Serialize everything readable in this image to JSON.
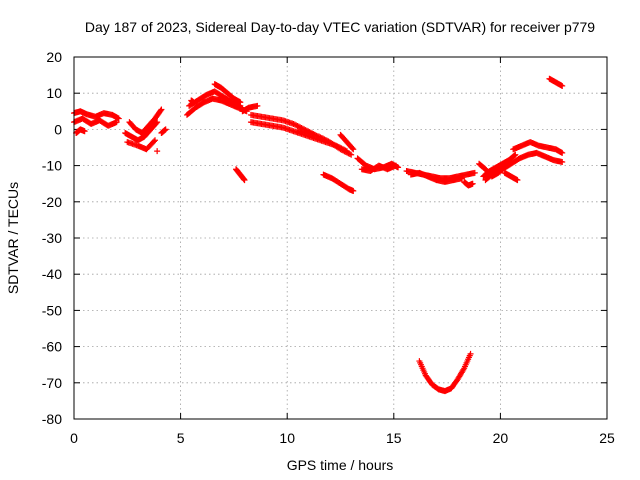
{
  "chart_data": {
    "type": "scatter",
    "title": "Day 187 of 2023, Sidereal Day-to-day VTEC variation (SDTVAR) for receiver p779",
    "xlabel": "GPS time / hours",
    "ylabel": "SDTVAR / TECUs",
    "xlim": [
      0,
      25
    ],
    "ylim": [
      -80,
      20
    ],
    "xticks": [
      0,
      5,
      10,
      15,
      20,
      25
    ],
    "yticks": [
      -80,
      -70,
      -60,
      -50,
      -40,
      -30,
      -20,
      -10,
      0,
      10,
      20
    ],
    "grid": true,
    "marker": "plus",
    "series": [
      {
        "name": "SDTVAR",
        "color": "#ff0000",
        "segments": [
          {
            "x": [
              0.0,
              0.3,
              0.6,
              1.0,
              1.4,
              1.8,
              2.1
            ],
            "y": [
              4.5,
              5.0,
              4.2,
              3.5,
              4.5,
              4.0,
              3.0
            ]
          },
          {
            "x": [
              0.0,
              0.4,
              0.8,
              1.2,
              1.6,
              2.0
            ],
            "y": [
              2.0,
              3.0,
              1.5,
              2.5,
              1.0,
              2.0
            ]
          },
          {
            "x": [
              0.1,
              0.3,
              0.5
            ],
            "y": [
              -1.0,
              0.0,
              -0.5
            ]
          },
          {
            "x": [
              2.4,
              2.7,
              3.0,
              3.3,
              3.6,
              3.9
            ],
            "y": [
              -1.0,
              -2.0,
              -3.0,
              -2.0,
              0.0,
              2.0
            ]
          },
          {
            "x": [
              2.6,
              2.9,
              3.2,
              3.5,
              3.8,
              4.1
            ],
            "y": [
              2.0,
              0.0,
              -1.0,
              1.0,
              3.0,
              5.5
            ]
          },
          {
            "x": [
              2.5,
              3.0,
              3.4,
              3.8
            ],
            "y": [
              -3.5,
              -4.5,
              -5.5,
              -3.0
            ]
          },
          {
            "x": [
              4.1,
              4.3
            ],
            "y": [
              -1.0,
              0.0
            ]
          },
          {
            "x": [
              3.9
            ],
            "y": [
              -6.0
            ]
          },
          {
            "x": [
              5.3,
              5.7,
              6.1,
              6.5,
              6.9,
              7.3,
              7.7,
              8.1
            ],
            "y": [
              4.0,
              6.0,
              7.5,
              8.5,
              8.0,
              7.0,
              6.0,
              5.0
            ]
          },
          {
            "x": [
              5.4,
              5.8,
              6.2,
              6.6,
              7.0,
              7.4,
              7.8
            ],
            "y": [
              6.5,
              8.0,
              9.5,
              10.5,
              9.0,
              7.5,
              6.5
            ]
          },
          {
            "x": [
              6.6,
              6.9,
              7.2,
              7.5,
              7.8
            ],
            "y": [
              12.5,
              11.5,
              10.0,
              8.5,
              7.5
            ]
          },
          {
            "x": [
              5.5,
              5.6
            ],
            "y": [
              8.0,
              7.5
            ]
          },
          {
            "x": [
              7.9,
              8.2,
              8.6
            ],
            "y": [
              5.0,
              6.0,
              6.5
            ]
          },
          {
            "x": [
              8.3,
              8.8,
              9.3,
              9.8,
              10.3,
              10.8,
              11.3
            ],
            "y": [
              4.0,
              3.5,
              3.0,
              2.5,
              1.5,
              0.0,
              -1.5
            ]
          },
          {
            "x": [
              8.3,
              8.8,
              9.3,
              9.8,
              10.3,
              10.8,
              11.3,
              11.8,
              12.3,
              12.8
            ],
            "y": [
              2.0,
              1.5,
              1.0,
              0.5,
              -0.5,
              -1.5,
              -2.5,
              -3.5,
              -4.5,
              -6.0
            ]
          },
          {
            "x": [
              10.5,
              11.0,
              11.5,
              12.0,
              12.5,
              13.0
            ],
            "y": [
              -0.5,
              -1.0,
              -2.0,
              -3.5,
              -5.5,
              -7.0
            ]
          },
          {
            "x": [
              12.5,
              12.8,
              13.1
            ],
            "y": [
              -1.5,
              -3.5,
              -5.5
            ]
          },
          {
            "x": [
              13.3,
              13.7,
              14.1,
              14.5,
              14.9,
              15.2
            ],
            "y": [
              -8.0,
              -10.0,
              -11.0,
              -10.5,
              -9.5,
              -10.5
            ]
          },
          {
            "x": [
              13.5,
              13.9,
              14.3,
              14.7,
              15.1
            ],
            "y": [
              -11.0,
              -11.5,
              -10.0,
              -11.0,
              -10.0
            ]
          },
          {
            "x": [
              7.6,
              7.8,
              8.0
            ],
            "y": [
              -11.0,
              -12.5,
              -14.0
            ]
          },
          {
            "x": [
              11.7,
              12.1,
              12.5,
              12.9,
              13.1
            ],
            "y": [
              -12.5,
              -13.5,
              -15.0,
              -16.5,
              -17.0
            ]
          },
          {
            "x": [
              15.6,
              16.0,
              16.4,
              16.8,
              17.2,
              17.6,
              18.0,
              18.4,
              18.8
            ],
            "y": [
              -11.5,
              -12.0,
              -12.5,
              -13.0,
              -13.5,
              -13.5,
              -13.0,
              -12.5,
              -12.0
            ]
          },
          {
            "x": [
              15.8,
              16.2,
              16.6,
              17.0,
              17.4,
              17.8,
              18.2
            ],
            "y": [
              -12.5,
              -12.0,
              -13.0,
              -14.0,
              -14.5,
              -14.0,
              -13.5
            ]
          },
          {
            "x": [
              18.3,
              18.5,
              18.7
            ],
            "y": [
              -14.5,
              -15.5,
              -15.0
            ]
          },
          {
            "x": [
              16.2,
              16.5,
              16.8,
              17.1,
              17.4,
              17.7,
              18.0,
              18.3,
              18.6
            ],
            "y": [
              -64.0,
              -68.0,
              -70.5,
              -71.8,
              -72.3,
              -71.5,
              -69.0,
              -66.0,
              -62.0
            ]
          },
          {
            "x": [
              19.2,
              19.5,
              19.8,
              20.1,
              20.4,
              20.7
            ],
            "y": [
              -13.0,
              -11.5,
              -10.5,
              -9.5,
              -8.5,
              -7.0
            ]
          },
          {
            "x": [
              19.0,
              19.3,
              19.6,
              19.9,
              20.2
            ],
            "y": [
              -9.5,
              -11.0,
              -13.0,
              -12.0,
              -10.5
            ]
          },
          {
            "x": [
              19.3,
              19.7,
              20.1,
              20.5,
              20.9,
              21.3,
              21.7,
              22.1,
              22.5,
              22.9
            ],
            "y": [
              -14.0,
              -12.0,
              -11.0,
              -9.5,
              -8.0,
              -7.0,
              -6.5,
              -7.5,
              -8.5,
              -9.0
            ]
          },
          {
            "x": [
              20.6,
              21.0,
              21.4,
              21.8,
              22.2,
              22.6,
              22.9
            ],
            "y": [
              -5.5,
              -4.5,
              -3.5,
              -4.5,
              -5.0,
              -5.5,
              -6.5
            ]
          },
          {
            "x": [
              20.2,
              20.5,
              20.8
            ],
            "y": [
              -12.0,
              -13.0,
              -14.0
            ]
          },
          {
            "x": [
              22.3,
              22.6,
              22.9
            ],
            "y": [
              14.0,
              13.0,
              12.0
            ]
          }
        ]
      }
    ]
  }
}
